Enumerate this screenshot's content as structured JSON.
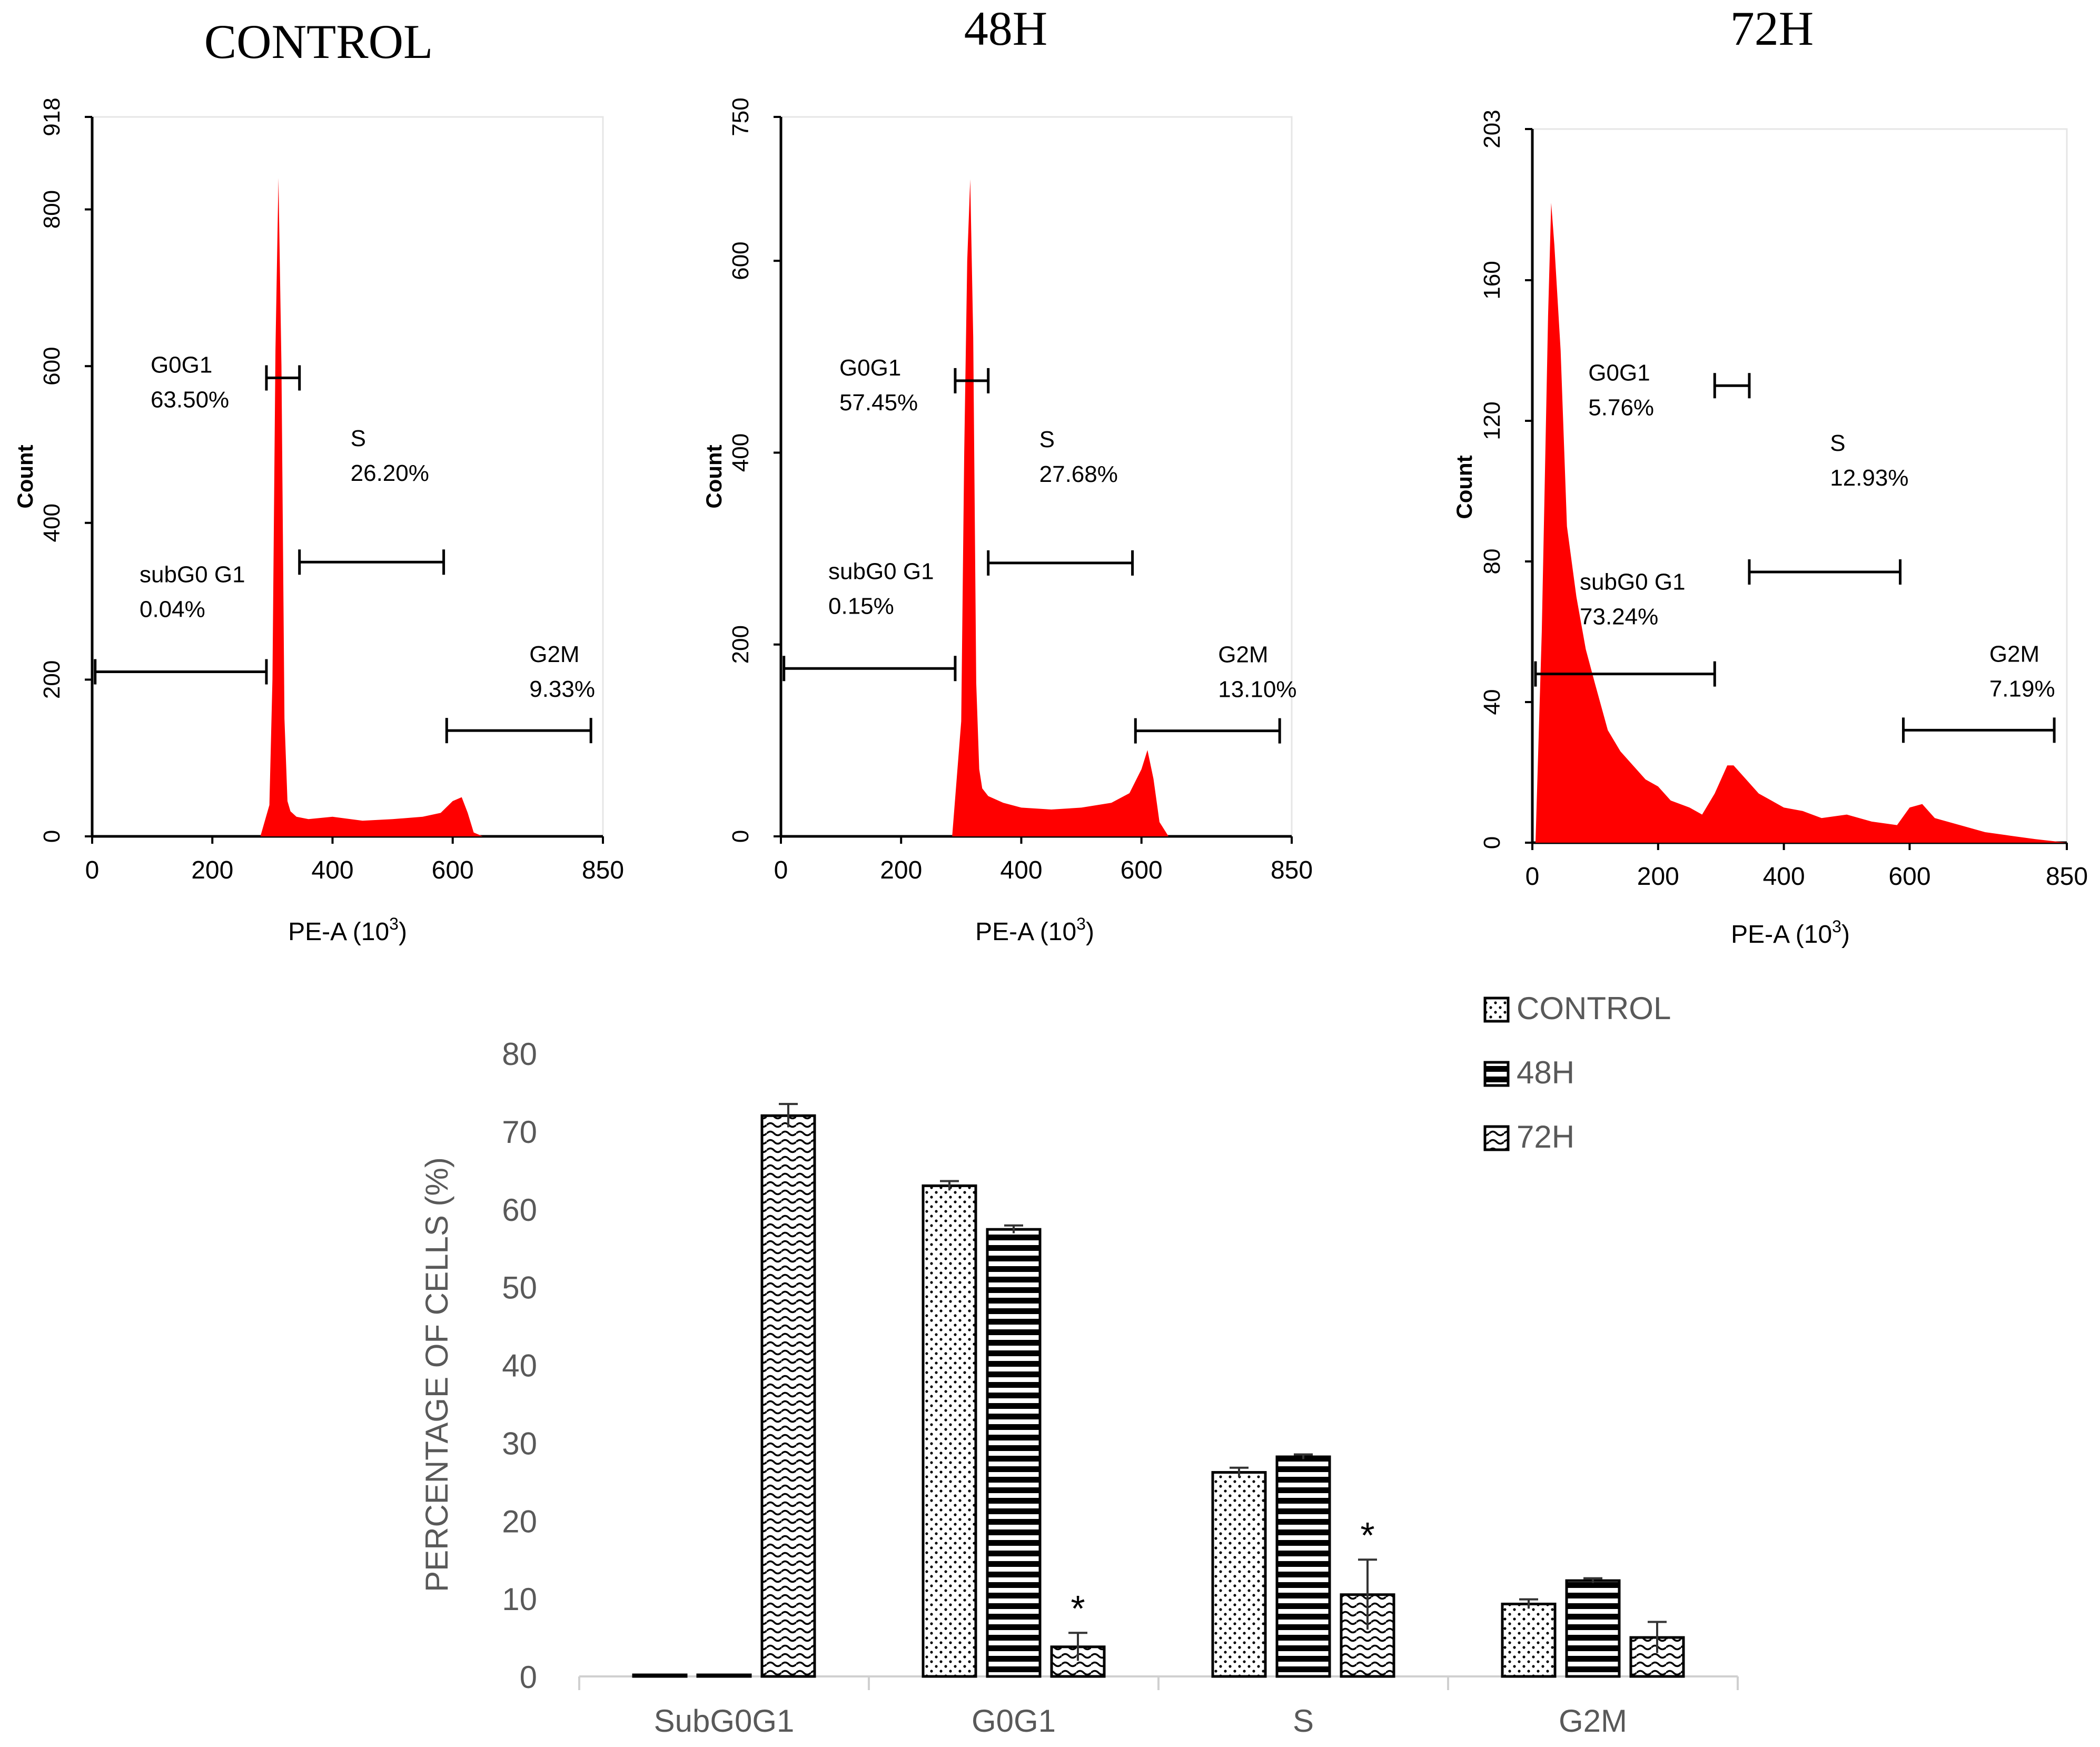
{
  "chart_data": [
    {
      "type": "area",
      "title": "CONTROL",
      "xlabel": "PE-A (10",
      "xlabel_exp": "3",
      "xlabel_close": ")",
      "ylabel": "Count",
      "xlim": [
        0,
        850
      ],
      "ylim": [
        0,
        918
      ],
      "x_ticks": [
        "0",
        "200",
        "400",
        "600",
        "850"
      ],
      "x_tick_values": [
        0,
        200,
        400,
        600,
        850
      ],
      "y_ticks": [
        "0",
        "200",
        "400",
        "600",
        "800",
        "918"
      ],
      "y_tick_values": [
        0,
        200,
        400,
        600,
        800,
        918
      ],
      "color": "#ff0000",
      "histogram": {
        "x": [
          280,
          295,
          300,
          305,
          310,
          315,
          320,
          325,
          330,
          340,
          360,
          400,
          450,
          500,
          550,
          580,
          600,
          615,
          625,
          635,
          650
        ],
        "y": [
          0,
          40,
          200,
          620,
          840,
          600,
          150,
          45,
          32,
          25,
          22,
          25,
          20,
          22,
          25,
          30,
          45,
          50,
          30,
          5,
          0
        ]
      },
      "gates": [
        {
          "name": "G0G1",
          "percent": "63.50%",
          "from": 290,
          "to": 345,
          "y": 585
        },
        {
          "name": "S",
          "percent": "26.20%",
          "from": 345,
          "to": 585,
          "y": 350
        },
        {
          "name": "subG0 G1",
          "percent": "0.04%",
          "from": 5,
          "to": 290,
          "y": 210
        },
        {
          "name": "G2M",
          "percent": "9.33%",
          "from": 590,
          "to": 830,
          "y": 135
        }
      ]
    },
    {
      "type": "area",
      "title": "48H",
      "xlabel": "PE-A (10",
      "xlabel_exp": "3",
      "xlabel_close": ")",
      "ylabel": "Count",
      "xlim": [
        0,
        850
      ],
      "ylim": [
        0,
        750
      ],
      "x_ticks": [
        "0",
        "200",
        "400",
        "600",
        "850"
      ],
      "x_tick_values": [
        0,
        200,
        400,
        600,
        850
      ],
      "y_ticks": [
        "0",
        "200",
        "400",
        "600",
        "750"
      ],
      "y_tick_values": [
        0,
        200,
        400,
        600,
        750
      ],
      "color": "#ff0000",
      "histogram": {
        "x": [
          285,
          300,
          305,
          310,
          315,
          320,
          325,
          330,
          335,
          345,
          370,
          400,
          450,
          500,
          550,
          580,
          600,
          610,
          620,
          630,
          645
        ],
        "y": [
          0,
          120,
          400,
          600,
          685,
          520,
          160,
          70,
          50,
          42,
          35,
          30,
          28,
          30,
          35,
          45,
          70,
          90,
          60,
          15,
          0
        ]
      },
      "gates": [
        {
          "name": "G0G1",
          "percent": "57.45%",
          "from": 290,
          "to": 345,
          "y": 475
        },
        {
          "name": "S",
          "percent": "27.68%",
          "from": 345,
          "to": 585,
          "y": 285
        },
        {
          "name": "subG0 G1",
          "percent": "0.15%",
          "from": 5,
          "to": 290,
          "y": 175
        },
        {
          "name": "G2M",
          "percent": "13.10%",
          "from": 590,
          "to": 830,
          "y": 110
        }
      ]
    },
    {
      "type": "area",
      "title": "72H",
      "xlabel": "PE-A (10",
      "xlabel_exp": "3",
      "xlabel_close": ")",
      "ylabel": "Count",
      "xlim": [
        0,
        850
      ],
      "ylim": [
        0,
        203
      ],
      "x_ticks": [
        "0",
        "200",
        "400",
        "600",
        "850"
      ],
      "x_tick_values": [
        0,
        200,
        400,
        600,
        850
      ],
      "y_ticks": [
        "0",
        "40",
        "80",
        "120",
        "160",
        "203"
      ],
      "y_tick_values": [
        0,
        40,
        80,
        120,
        160,
        203
      ],
      "color": "#ff0000",
      "histogram": {
        "x": [
          5,
          15,
          25,
          30,
          35,
          45,
          55,
          70,
          85,
          100,
          120,
          140,
          160,
          180,
          200,
          220,
          250,
          270,
          290,
          310,
          320,
          340,
          360,
          380,
          400,
          430,
          460,
          500,
          540,
          580,
          600,
          620,
          640,
          680,
          720,
          760,
          800,
          850
        ],
        "y": [
          0,
          60,
          150,
          182,
          170,
          140,
          90,
          70,
          55,
          45,
          32,
          26,
          22,
          18,
          16,
          12,
          10,
          8,
          14,
          22,
          22,
          18,
          14,
          12,
          10,
          9,
          7,
          8,
          6,
          5,
          10,
          11,
          7,
          5,
          3,
          2,
          1,
          0
        ]
      },
      "gates": [
        {
          "name": "G0G1",
          "percent": "5.76%",
          "from": 290,
          "to": 345,
          "y": 130
        },
        {
          "name": "S",
          "percent": "12.93%",
          "from": 345,
          "to": 585,
          "y": 77
        },
        {
          "name": "subG0 G1",
          "percent": "73.24%",
          "from": 5,
          "to": 290,
          "y": 48
        },
        {
          "name": "G2M",
          "percent": "7.19%",
          "from": 590,
          "to": 830,
          "y": 32
        }
      ]
    },
    {
      "type": "bar",
      "title": "",
      "categories": [
        "SubG0G1",
        "G0G1",
        "S",
        "G2M"
      ],
      "ylabel": "PERCENTAGE OF CELLS (%)",
      "xlabel": "",
      "ylim": [
        0,
        80
      ],
      "y_ticks": [
        "0",
        "10",
        "20",
        "30",
        "40",
        "50",
        "60",
        "70",
        "80"
      ],
      "y_tick_values": [
        0,
        10,
        20,
        30,
        40,
        50,
        60,
        70,
        80
      ],
      "legend_position": "top-right",
      "significance_marker": "*",
      "series": [
        {
          "name": "CONTROL",
          "pattern": "dots",
          "values": [
            0.04,
            63.0,
            26.2,
            9.3
          ],
          "errors": [
            0,
            0.6,
            0.6,
            0.6
          ],
          "significant": [
            false,
            false,
            false,
            false
          ]
        },
        {
          "name": "48H",
          "pattern": "horizontal-lines",
          "values": [
            0.15,
            57.4,
            28.2,
            12.3
          ],
          "errors": [
            0,
            0.5,
            0.3,
            0.3
          ],
          "significant": [
            false,
            false,
            false,
            false
          ]
        },
        {
          "name": "72H",
          "pattern": "waves",
          "values": [
            72.0,
            3.8,
            10.5,
            5.0
          ],
          "errors": [
            1.5,
            1.8,
            4.5,
            2.0
          ],
          "significant": [
            false,
            true,
            true,
            false
          ]
        }
      ]
    }
  ]
}
